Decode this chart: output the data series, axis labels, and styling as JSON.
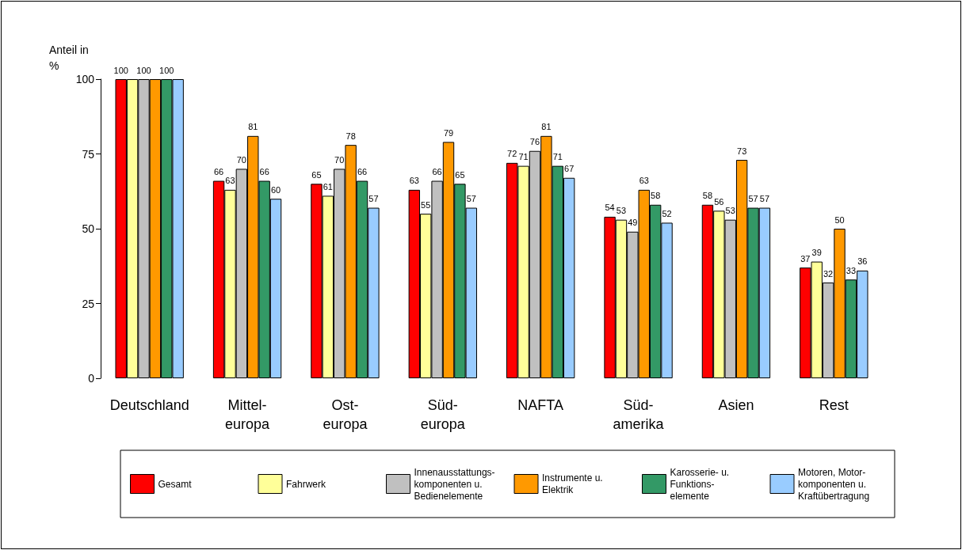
{
  "chart_data": {
    "type": "bar",
    "ylabel": "Anteil in\n%",
    "categories": [
      "Deutschland",
      "Mittel-\neuropa",
      "Ost-\neuropa",
      "Süd-\neuropa",
      "NAFTA",
      "Süd-\namerika",
      "Asien",
      "Rest"
    ],
    "series": [
      {
        "name": "Gesamt",
        "color": "#ff0000",
        "values": [
          100,
          66,
          65,
          63,
          72,
          54,
          58,
          37
        ],
        "value_labels": [
          "100",
          "66",
          "65",
          "63",
          "72",
          "54",
          "58",
          "37"
        ]
      },
      {
        "name": "Fahrwerk",
        "color": "#ffff99",
        "values": [
          100,
          63,
          61,
          55,
          71,
          53,
          56,
          39
        ],
        "value_labels": [
          null,
          "63",
          "61",
          "55",
          "71",
          "53",
          "56",
          "39"
        ]
      },
      {
        "name": "Innenausstattungs-\nkomponenten u.\nBedienelemente",
        "color": "#c0c0c0",
        "values": [
          100,
          70,
          70,
          66,
          76,
          49,
          53,
          32
        ],
        "value_labels": [
          "100",
          "70",
          "70",
          "66",
          "76",
          "49",
          "53",
          "32"
        ]
      },
      {
        "name": "Instrumente u.\nElektrik",
        "color": "#ff9900",
        "values": [
          100,
          81,
          78,
          79,
          81,
          63,
          73,
          50
        ],
        "value_labels": [
          null,
          "81",
          "78",
          "79",
          "81",
          "63",
          "73",
          "50"
        ]
      },
      {
        "name": "Karosserie- u.\nFunktions-\nelemente",
        "color": "#339966",
        "values": [
          100,
          66,
          66,
          65,
          71,
          58,
          57,
          33
        ],
        "value_labels": [
          "100",
          "66",
          "66",
          "65",
          "71",
          "58",
          "57",
          "33"
        ]
      },
      {
        "name": "Motoren, Motor-\nkomponenten u.\nKraftübertragung",
        "color": "#99ccff",
        "values": [
          100,
          60,
          57,
          57,
          67,
          52,
          57,
          36
        ],
        "value_labels": [
          null,
          "60",
          "57",
          "57",
          "67",
          "52",
          "57",
          "36"
        ]
      }
    ],
    "ylim": [
      0,
      100
    ],
    "yticks": [
      0,
      25,
      50,
      75,
      100
    ],
    "grid": false,
    "legend": "bottom"
  }
}
